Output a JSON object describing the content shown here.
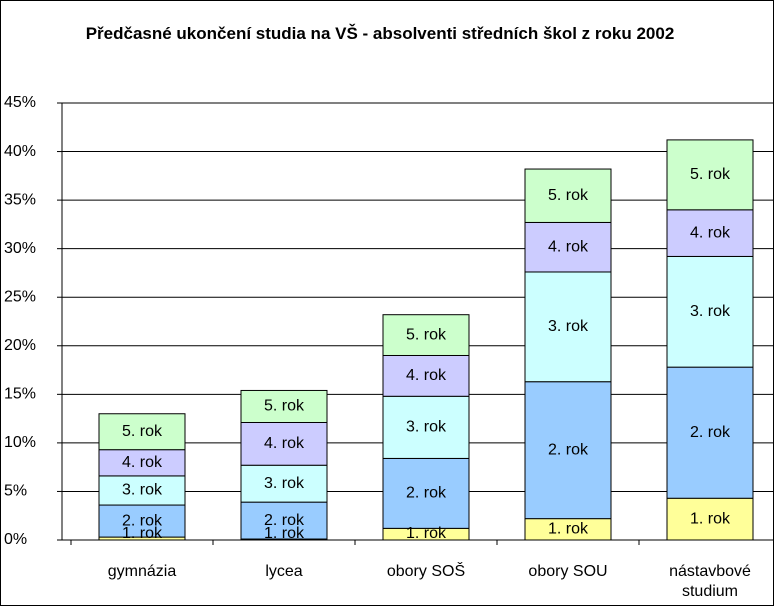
{
  "chart_data": {
    "type": "stacked_bar",
    "title": "Předčasné ukončení studia na VŠ - absolventi středních škol z roku 2002",
    "categories": [
      "gymnázia",
      "lycea",
      "obory SOŠ",
      "obory SOU",
      "nástavbové studium"
    ],
    "series": [
      {
        "name": "1. rok",
        "color": "#ffff99",
        "values": [
          0.3,
          0.1,
          1.2,
          2.2,
          4.3
        ]
      },
      {
        "name": "2. rok",
        "color": "#99ccff",
        "values": [
          3.3,
          3.8,
          7.2,
          14.1,
          13.5
        ]
      },
      {
        "name": "3. rok",
        "color": "#ccffff",
        "values": [
          3.0,
          3.8,
          6.4,
          11.3,
          11.4
        ]
      },
      {
        "name": "4. rok",
        "color": "#ccccff",
        "values": [
          2.7,
          4.4,
          4.2,
          5.1,
          4.8
        ]
      },
      {
        "name": "5. rok",
        "color": "#ccffcc",
        "values": [
          3.7,
          3.3,
          4.2,
          5.5,
          7.2
        ]
      }
    ],
    "ylim": [
      0,
      45
    ],
    "yticks": [
      {
        "value": 0,
        "label": "0%"
      },
      {
        "value": 5,
        "label": "5%"
      },
      {
        "value": 10,
        "label": "10%"
      },
      {
        "value": 15,
        "label": "15%"
      },
      {
        "value": 20,
        "label": "20%"
      },
      {
        "value": 25,
        "label": "25%"
      },
      {
        "value": 30,
        "label": "30%"
      },
      {
        "value": 35,
        "label": "35%"
      },
      {
        "value": 40,
        "label": "40%"
      },
      {
        "value": 45,
        "label": "45%"
      }
    ],
    "grid": true
  }
}
